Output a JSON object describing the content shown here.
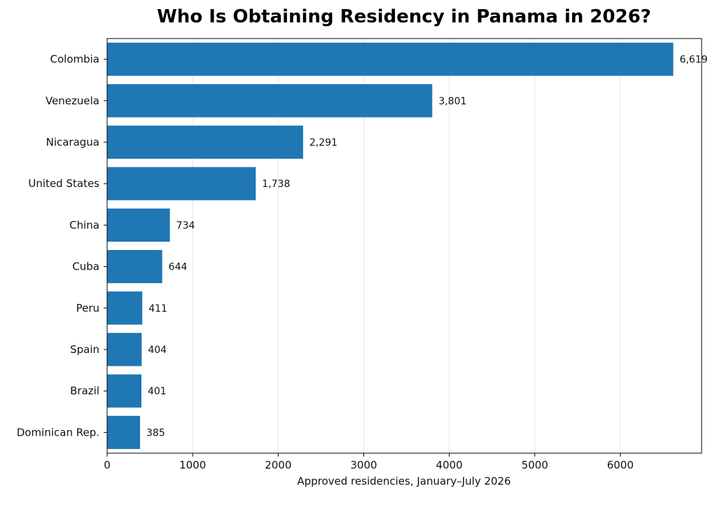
{
  "chart_data": {
    "type": "bar",
    "orientation": "horizontal",
    "title": "Who Is Obtaining Residency in Panama in 2026?",
    "xlabel": "Approved residencies, January–July 2026",
    "ylabel": "",
    "categories": [
      "Colombia",
      "Venezuela",
      "Nicaragua",
      "United States",
      "China",
      "Cuba",
      "Peru",
      "Spain",
      "Brazil",
      "Dominican Rep."
    ],
    "values": [
      6619,
      3801,
      2291,
      1738,
      734,
      644,
      411,
      404,
      401,
      385
    ],
    "value_labels": [
      "6,619",
      "3,801",
      "2,291",
      "1,738",
      "734",
      "644",
      "411",
      "404",
      "401",
      "385"
    ],
    "xlim": [
      0,
      6950
    ],
    "xticks": [
      0,
      1000,
      2000,
      3000,
      4000,
      5000,
      6000
    ],
    "xtick_labels": [
      "0",
      "1000",
      "2000",
      "3000",
      "4000",
      "5000",
      "6000"
    ],
    "grid": "vertical, light",
    "bar_color": "#1f77b4",
    "legend": "none"
  }
}
